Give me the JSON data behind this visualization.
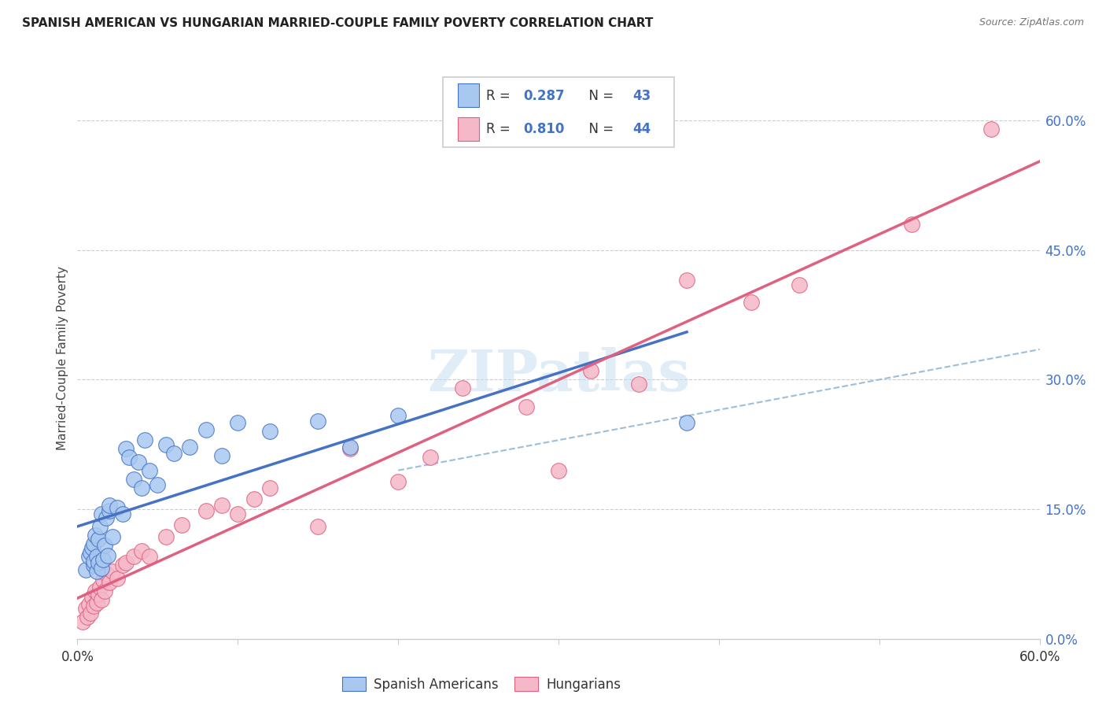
{
  "title": "SPANISH AMERICAN VS HUNGARIAN MARRIED-COUPLE FAMILY POVERTY CORRELATION CHART",
  "source": "Source: ZipAtlas.com",
  "ylabel": "Married-Couple Family Poverty",
  "xmin": 0.0,
  "xmax": 0.6,
  "ymin": 0.0,
  "ymax": 0.65,
  "x_tick_positions": [
    0.0,
    0.1,
    0.2,
    0.3,
    0.4,
    0.5,
    0.6
  ],
  "x_tick_labels": [
    "0.0%",
    "",
    "",
    "",
    "",
    "",
    "60.0%"
  ],
  "y_tick_positions": [
    0.0,
    0.15,
    0.3,
    0.45,
    0.6
  ],
  "y_tick_labels": [
    "0.0%",
    "15.0%",
    "30.0%",
    "45.0%",
    "60.0%"
  ],
  "color_blue_fill": "#a8c8f0",
  "color_blue_edge": "#4472c4",
  "color_pink_fill": "#f5b8c8",
  "color_pink_edge": "#e06080",
  "color_blue_line": "#4472c4",
  "color_pink_line": "#e06080",
  "color_dashed": "#90b8d8",
  "watermark": "ZIPatlas",
  "legend_label_1": "Spanish Americans",
  "legend_label_2": "Hungarians",
  "legend_r1": "0.287",
  "legend_n1": "43",
  "legend_r2": "0.810",
  "legend_n2": "44",
  "blue_x": [
    0.005,
    0.007,
    0.008,
    0.009,
    0.01,
    0.01,
    0.01,
    0.011,
    0.012,
    0.012,
    0.013,
    0.013,
    0.014,
    0.015,
    0.015,
    0.016,
    0.017,
    0.018,
    0.019,
    0.02,
    0.02,
    0.022,
    0.025,
    0.028,
    0.03,
    0.032,
    0.035,
    0.038,
    0.04,
    0.042,
    0.045,
    0.05,
    0.055,
    0.06,
    0.07,
    0.08,
    0.09,
    0.1,
    0.12,
    0.15,
    0.17,
    0.2,
    0.38
  ],
  "blue_y": [
    0.08,
    0.095,
    0.1,
    0.105,
    0.085,
    0.09,
    0.11,
    0.12,
    0.078,
    0.095,
    0.088,
    0.115,
    0.13,
    0.082,
    0.145,
    0.092,
    0.108,
    0.14,
    0.096,
    0.148,
    0.155,
    0.118,
    0.152,
    0.145,
    0.22,
    0.21,
    0.185,
    0.205,
    0.175,
    0.23,
    0.195,
    0.178,
    0.225,
    0.215,
    0.222,
    0.242,
    0.212,
    0.25,
    0.24,
    0.252,
    0.222,
    0.258,
    0.25
  ],
  "pink_x": [
    0.003,
    0.005,
    0.006,
    0.007,
    0.008,
    0.009,
    0.01,
    0.011,
    0.012,
    0.013,
    0.014,
    0.015,
    0.016,
    0.017,
    0.018,
    0.02,
    0.022,
    0.025,
    0.028,
    0.03,
    0.035,
    0.04,
    0.045,
    0.055,
    0.065,
    0.08,
    0.09,
    0.1,
    0.11,
    0.12,
    0.15,
    0.17,
    0.2,
    0.22,
    0.24,
    0.28,
    0.3,
    0.32,
    0.35,
    0.38,
    0.42,
    0.45,
    0.52,
    0.57
  ],
  "pink_y": [
    0.02,
    0.035,
    0.025,
    0.04,
    0.03,
    0.048,
    0.038,
    0.055,
    0.042,
    0.052,
    0.06,
    0.045,
    0.068,
    0.055,
    0.075,
    0.065,
    0.078,
    0.07,
    0.085,
    0.088,
    0.095,
    0.102,
    0.095,
    0.118,
    0.132,
    0.148,
    0.155,
    0.145,
    0.162,
    0.175,
    0.13,
    0.22,
    0.182,
    0.21,
    0.29,
    0.268,
    0.195,
    0.31,
    0.295,
    0.415,
    0.39,
    0.41,
    0.48,
    0.59
  ],
  "blue_line_x_end": 0.38,
  "dashed_line_start_x": 0.2,
  "dashed_line_start_y": 0.195,
  "dashed_line_end_x": 0.6,
  "dashed_line_end_y": 0.335
}
